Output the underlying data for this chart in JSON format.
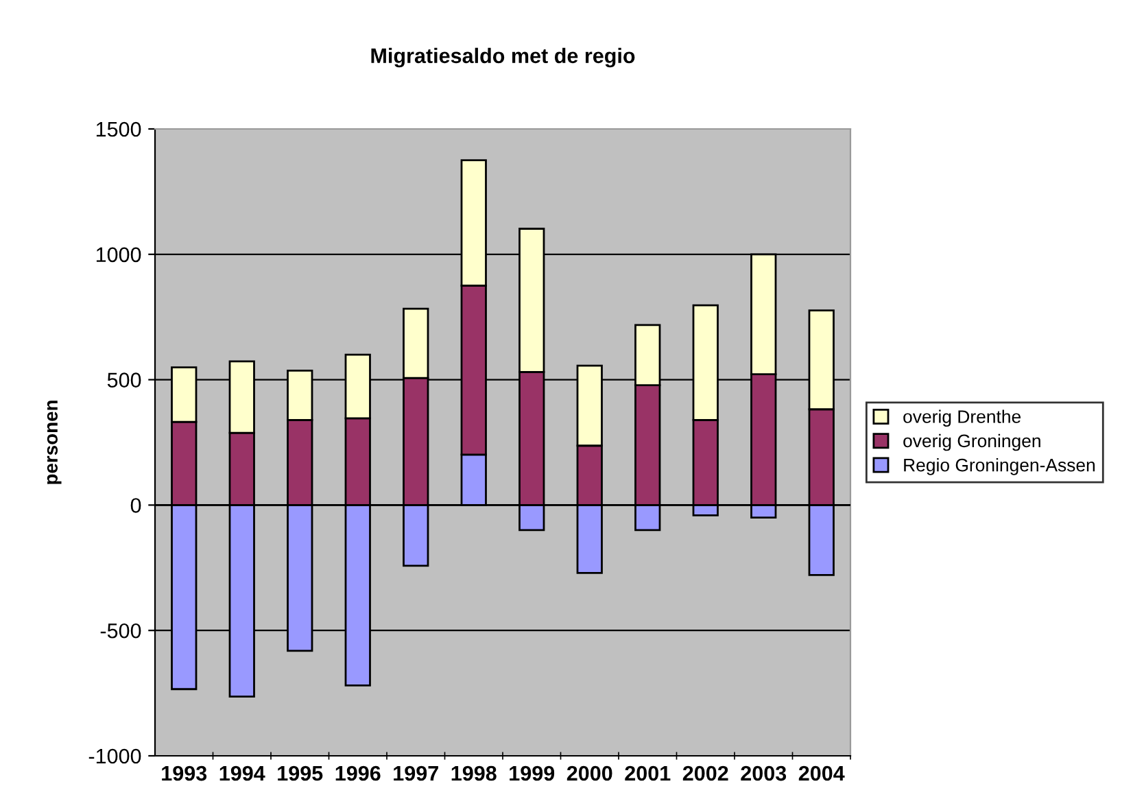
{
  "chart_data": {
    "type": "bar",
    "title": "Migratiesaldo met de regio",
    "ylabel": "personen",
    "categories": [
      "1993",
      "1994",
      "1995",
      "1996",
      "1997",
      "1998",
      "1999",
      "2000",
      "2001",
      "2002",
      "2003",
      "2004"
    ],
    "stacked": true,
    "series": [
      {
        "name": "Regio Groningen-Assen",
        "color": "#9999ff",
        "values": [
          -734,
          -764,
          -581,
          -719,
          -242,
          201,
          -100,
          -271,
          -100,
          -41,
          -50,
          -279
        ]
      },
      {
        "name": "overig Groningen",
        "color": "#993366",
        "values": [
          332,
          288,
          339,
          346,
          507,
          674,
          531,
          237,
          478,
          339,
          522,
          382
        ]
      },
      {
        "name": "overig Drenthe",
        "color": "#ffffcc",
        "values": [
          217,
          285,
          197,
          254,
          276,
          500,
          571,
          319,
          240,
          458,
          478,
          394
        ]
      }
    ],
    "ylim": [
      -1000,
      1500
    ],
    "yticks": [
      -1000,
      -500,
      0,
      500,
      1000,
      1500
    ],
    "grid": "y",
    "legend": "right"
  }
}
